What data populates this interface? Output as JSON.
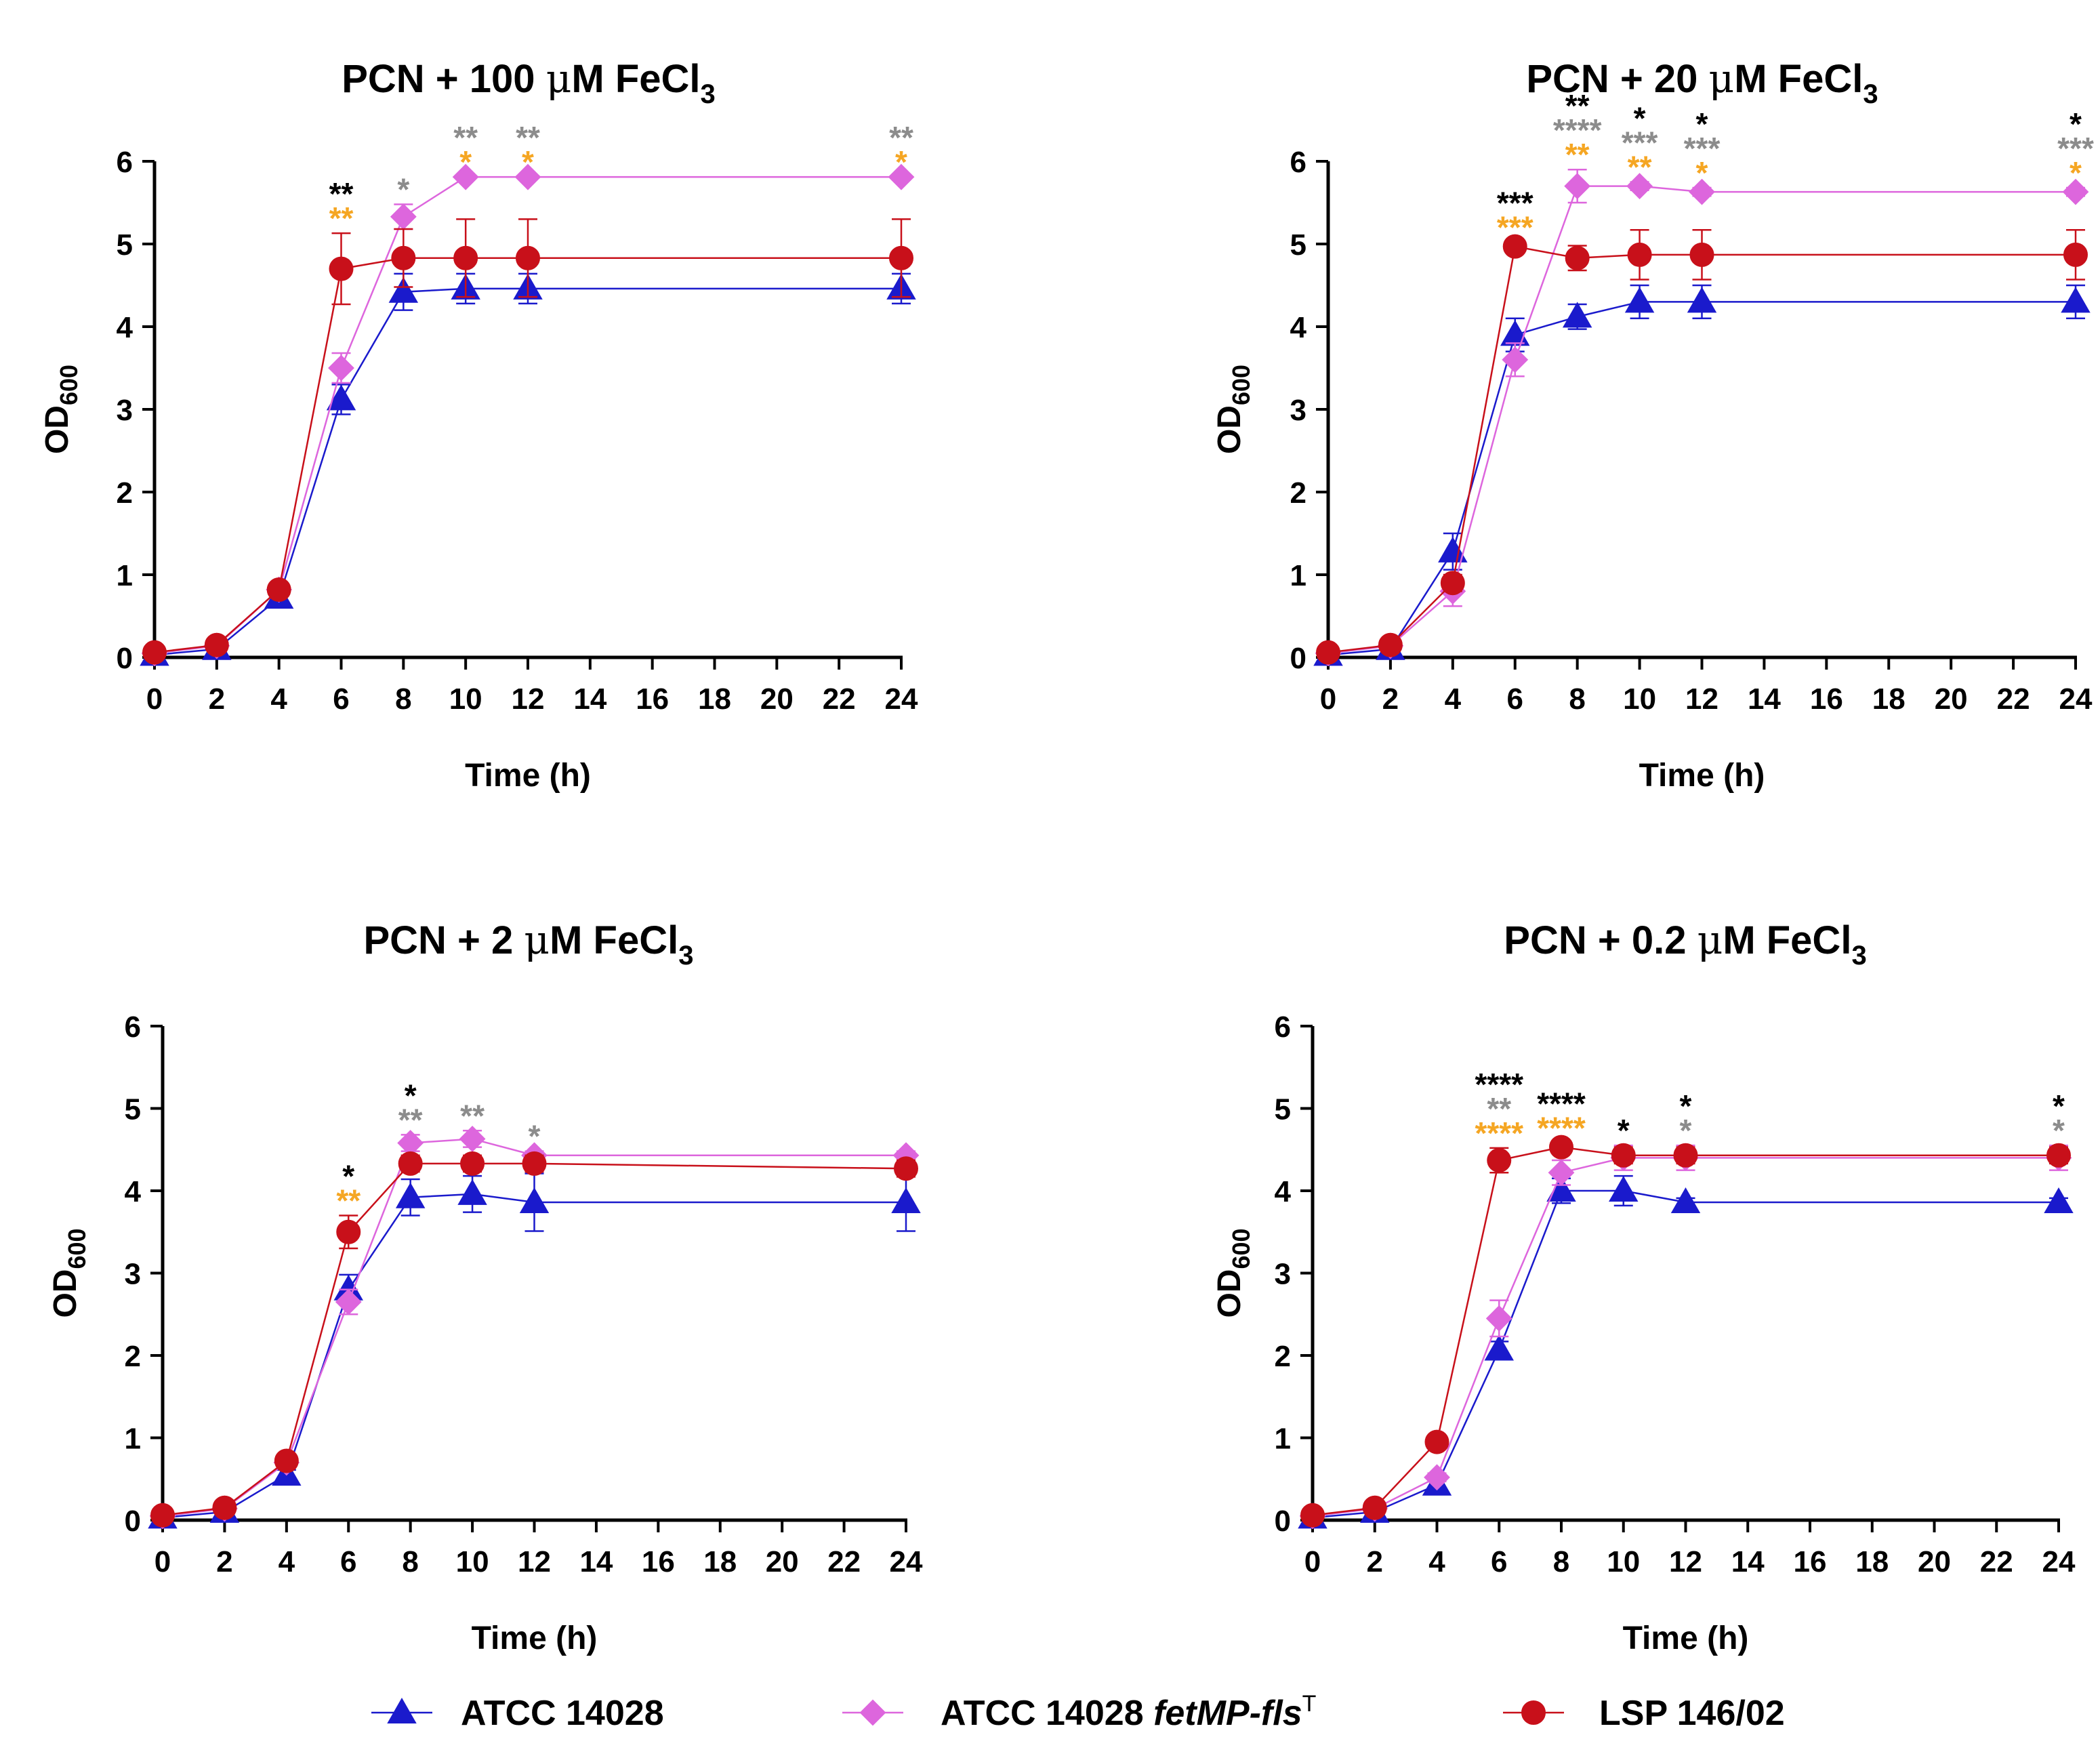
{
  "colors": {
    "atcc": "#1a1acc",
    "fet": "#dd66dd",
    "lsp": "#c8101a",
    "sig_black": "#000000",
    "sig_gray": "#8c8c8c",
    "sig_orange": "#f5a623"
  },
  "chart_data": [
    {
      "type": "line",
      "title_prefix": "PCN + 100 ",
      "title_mu": "μ",
      "title_unit": "M FeCl",
      "title_sub": "3",
      "xlabel": "Time (h)",
      "ylabel_main": "OD",
      "ylabel_sub": "600",
      "x_ticks": [
        "0",
        "2",
        "4",
        "6",
        "8",
        "10",
        "12",
        "14",
        "16",
        "18",
        "20",
        "22",
        "24"
      ],
      "y_ticks": [
        "0",
        "1",
        "2",
        "3",
        "4",
        "5",
        "6"
      ],
      "ylim": [
        0,
        6
      ],
      "x": [
        0,
        2,
        4,
        6,
        8,
        10,
        12,
        24
      ],
      "series": [
        {
          "name": "ATCC 14028",
          "color": "#1a1acc",
          "marker": "triangle",
          "values": [
            0.03,
            0.1,
            0.72,
            3.12,
            4.42,
            4.46,
            4.46,
            4.46
          ],
          "errors": [
            0.02,
            0.04,
            0.08,
            0.18,
            0.22,
            0.18,
            0.18,
            0.18
          ]
        },
        {
          "name": "ATCC 14028 fetMP-flsT",
          "color": "#dd66dd",
          "marker": "diamond",
          "values": [
            0.05,
            0.14,
            0.82,
            3.5,
            5.33,
            5.81,
            5.81,
            5.81
          ],
          "errors": [
            0.02,
            0.03,
            0.08,
            0.18,
            0.15,
            0.0,
            0.0,
            0.0
          ]
        },
        {
          "name": "LSP 146/02",
          "color": "#c8101a",
          "marker": "circle",
          "values": [
            0.06,
            0.15,
            0.82,
            4.7,
            4.83,
            4.83,
            4.83,
            4.83
          ],
          "errors": [
            0.02,
            0.03,
            0.08,
            0.43,
            0.35,
            0.47,
            0.47,
            0.47
          ]
        }
      ],
      "annotations": [
        {
          "x": 6,
          "rows": [
            {
              "text": "**",
              "color": "black"
            },
            {
              "text": "**",
              "color": "orange"
            }
          ]
        },
        {
          "x": 8,
          "rows": [
            {
              "text": "*",
              "color": "gray"
            }
          ]
        },
        {
          "x": 10,
          "rows": [
            {
              "text": "**",
              "color": "gray"
            },
            {
              "text": "*",
              "color": "orange"
            }
          ]
        },
        {
          "x": 12,
          "rows": [
            {
              "text": "**",
              "color": "gray"
            },
            {
              "text": "*",
              "color": "orange"
            }
          ]
        },
        {
          "x": 24,
          "rows": [
            {
              "text": "**",
              "color": "gray"
            },
            {
              "text": "*",
              "color": "orange"
            }
          ]
        }
      ]
    },
    {
      "type": "line",
      "title_prefix": "PCN + 20 ",
      "title_mu": "μ",
      "title_unit": "M FeCl",
      "title_sub": "3",
      "xlabel": "Time (h)",
      "ylabel_main": "OD",
      "ylabel_sub": "600",
      "x_ticks": [
        "0",
        "2",
        "4",
        "6",
        "8",
        "10",
        "12",
        "14",
        "16",
        "18",
        "20",
        "22",
        "24"
      ],
      "y_ticks": [
        "0",
        "1",
        "2",
        "3",
        "4",
        "5",
        "6"
      ],
      "ylim": [
        0,
        6
      ],
      "x": [
        0,
        2,
        4,
        6,
        8,
        10,
        12,
        24
      ],
      "series": [
        {
          "name": "ATCC 14028",
          "color": "#1a1acc",
          "marker": "triangle",
          "values": [
            0.03,
            0.1,
            1.28,
            3.9,
            4.12,
            4.3,
            4.3,
            4.3
          ],
          "errors": [
            0.02,
            0.04,
            0.22,
            0.2,
            0.15,
            0.2,
            0.2,
            0.2
          ]
        },
        {
          "name": "ATCC 14028 fetMP-flsT",
          "color": "#dd66dd",
          "marker": "diamond",
          "values": [
            0.05,
            0.14,
            0.8,
            3.6,
            5.7,
            5.7,
            5.63,
            5.63
          ],
          "errors": [
            0.02,
            0.03,
            0.18,
            0.2,
            0.2,
            0.05,
            0.05,
            0.05
          ]
        },
        {
          "name": "LSP 146/02",
          "color": "#c8101a",
          "marker": "circle",
          "values": [
            0.06,
            0.15,
            0.9,
            4.97,
            4.83,
            4.87,
            4.87,
            4.87
          ],
          "errors": [
            0.02,
            0.03,
            0.1,
            0.05,
            0.15,
            0.3,
            0.3,
            0.3
          ]
        }
      ],
      "annotations": [
        {
          "x": 6,
          "rows": [
            {
              "text": "***",
              "color": "black"
            },
            {
              "text": "***",
              "color": "orange"
            }
          ]
        },
        {
          "x": 8,
          "rows": [
            {
              "text": "**",
              "color": "black"
            },
            {
              "text": "****",
              "color": "gray"
            },
            {
              "text": "**",
              "color": "orange"
            }
          ]
        },
        {
          "x": 10,
          "rows": [
            {
              "text": "*",
              "color": "black"
            },
            {
              "text": "***",
              "color": "gray"
            },
            {
              "text": "**",
              "color": "orange"
            }
          ]
        },
        {
          "x": 12,
          "rows": [
            {
              "text": "*",
              "color": "black"
            },
            {
              "text": "***",
              "color": "gray"
            },
            {
              "text": "*",
              "color": "orange"
            }
          ]
        },
        {
          "x": 24,
          "rows": [
            {
              "text": "*",
              "color": "black"
            },
            {
              "text": "***",
              "color": "gray"
            },
            {
              "text": "*",
              "color": "orange"
            }
          ]
        }
      ]
    },
    {
      "type": "line",
      "title_prefix": "PCN + 2 ",
      "title_mu": "μ",
      "title_unit": "M FeCl",
      "title_sub": "3",
      "xlabel": "Time (h)",
      "ylabel_main": "OD",
      "ylabel_sub": "600",
      "x_ticks": [
        "0",
        "2",
        "4",
        "6",
        "8",
        "10",
        "12",
        "14",
        "16",
        "18",
        "20",
        "22",
        "24"
      ],
      "y_ticks": [
        "0",
        "1",
        "2",
        "3",
        "4",
        "5",
        "6"
      ],
      "ylim": [
        0,
        6
      ],
      "x": [
        0,
        2,
        4,
        6,
        8,
        10,
        12,
        24
      ],
      "series": [
        {
          "name": "ATCC 14028",
          "color": "#1a1acc",
          "marker": "triangle",
          "values": [
            0.03,
            0.1,
            0.55,
            2.8,
            3.92,
            3.96,
            3.86,
            3.86
          ],
          "errors": [
            0.02,
            0.04,
            0.06,
            0.18,
            0.22,
            0.22,
            0.35,
            0.35
          ]
        },
        {
          "name": "ATCC 14028 fetMP-flsT",
          "color": "#dd66dd",
          "marker": "diamond",
          "values": [
            0.05,
            0.14,
            0.7,
            2.65,
            4.58,
            4.63,
            4.43,
            4.43
          ],
          "errors": [
            0.02,
            0.03,
            0.05,
            0.15,
            0.1,
            0.1,
            0.05,
            0.05
          ]
        },
        {
          "name": "LSP 146/02",
          "color": "#c8101a",
          "marker": "circle",
          "values": [
            0.06,
            0.15,
            0.72,
            3.5,
            4.33,
            4.33,
            4.33,
            4.27
          ],
          "errors": [
            0.02,
            0.03,
            0.05,
            0.2,
            0.1,
            0.1,
            0.1,
            0.1
          ]
        }
      ],
      "annotations": [
        {
          "x": 6,
          "rows": [
            {
              "text": "*",
              "color": "black"
            },
            {
              "text": "**",
              "color": "orange"
            }
          ]
        },
        {
          "x": 8,
          "rows": [
            {
              "text": "*",
              "color": "black"
            },
            {
              "text": "**",
              "color": "gray"
            }
          ]
        },
        {
          "x": 10,
          "rows": [
            {
              "text": "**",
              "color": "gray"
            }
          ]
        },
        {
          "x": 12,
          "rows": [
            {
              "text": "*",
              "color": "gray"
            }
          ]
        }
      ]
    },
    {
      "type": "line",
      "title_prefix": "PCN + 0.2 ",
      "title_mu": "μ",
      "title_unit": "M FeCl",
      "title_sub": "3",
      "xlabel": "Time (h)",
      "ylabel_main": "OD",
      "ylabel_sub": "600",
      "x_ticks": [
        "0",
        "2",
        "4",
        "6",
        "8",
        "10",
        "12",
        "14",
        "16",
        "18",
        "20",
        "22",
        "24"
      ],
      "y_ticks": [
        "0",
        "1",
        "2",
        "3",
        "4",
        "5",
        "6"
      ],
      "ylim": [
        0,
        6
      ],
      "x": [
        0,
        2,
        4,
        6,
        8,
        10,
        12,
        24
      ],
      "series": [
        {
          "name": "ATCC 14028",
          "color": "#1a1acc",
          "marker": "triangle",
          "values": [
            0.03,
            0.1,
            0.43,
            2.07,
            4.0,
            4.0,
            3.86,
            3.86
          ],
          "errors": [
            0.02,
            0.03,
            0.05,
            0.1,
            0.15,
            0.18,
            0.05,
            0.05
          ]
        },
        {
          "name": "ATCC 14028 fetMP-flsT",
          "color": "#dd66dd",
          "marker": "diamond",
          "values": [
            0.05,
            0.14,
            0.52,
            2.45,
            4.22,
            4.4,
            4.4,
            4.4
          ],
          "errors": [
            0.02,
            0.03,
            0.05,
            0.22,
            0.15,
            0.15,
            0.15,
            0.15
          ]
        },
        {
          "name": "LSP 146/02",
          "color": "#c8101a",
          "marker": "circle",
          "values": [
            0.06,
            0.15,
            0.95,
            4.37,
            4.53,
            4.43,
            4.43,
            4.43
          ],
          "errors": [
            0.02,
            0.03,
            0.05,
            0.15,
            0.05,
            0.1,
            0.1,
            0.1
          ]
        }
      ],
      "annotations": [
        {
          "x": 6,
          "rows": [
            {
              "text": "****",
              "color": "black"
            },
            {
              "text": "**",
              "color": "gray"
            },
            {
              "text": "****",
              "color": "orange"
            }
          ]
        },
        {
          "x": 8,
          "rows": [
            {
              "text": "****",
              "color": "black"
            },
            {
              "text": "****",
              "color": "orange"
            }
          ]
        },
        {
          "x": 10,
          "rows": [
            {
              "text": "*",
              "color": "black"
            }
          ]
        },
        {
          "x": 12,
          "rows": [
            {
              "text": "*",
              "color": "black"
            },
            {
              "text": "*",
              "color": "gray"
            }
          ]
        },
        {
          "x": 24,
          "rows": [
            {
              "text": "*",
              "color": "black"
            },
            {
              "text": "*",
              "color": "gray"
            }
          ]
        }
      ]
    }
  ],
  "legend": {
    "items": [
      {
        "label": "ATCC 14028",
        "italic": "",
        "sup": "",
        "color": "#1a1acc",
        "marker": "triangle"
      },
      {
        "label": "ATCC 14028 ",
        "italic": "fetMP-fls",
        "sup": "T",
        "color": "#dd66dd",
        "marker": "diamond"
      },
      {
        "label": "LSP 146/02",
        "italic": "",
        "sup": "",
        "color": "#c8101a",
        "marker": "circle"
      }
    ]
  }
}
